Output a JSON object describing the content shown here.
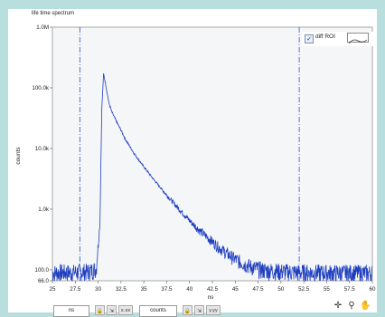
{
  "chart_data": {
    "type": "line",
    "title": "life time spectrum",
    "xlabel": "ns",
    "ylabel": "counts",
    "xlim": [
      25,
      60
    ],
    "ylim": [
      66,
      1000000
    ],
    "yscale": "log",
    "x_ticks": [
      "25",
      "27.5",
      "30",
      "32.5",
      "35",
      "37.5",
      "40",
      "42.5",
      "45",
      "47.5",
      "50",
      "52.5",
      "55",
      "57.5",
      "60"
    ],
    "y_ticks": [
      "1.0M",
      "100.0k",
      "10.0k",
      "1.0k",
      "100.0",
      "66.0"
    ],
    "grid": true,
    "series": [
      {
        "name": "diff ROI",
        "color": "#1f3fbf",
        "x": [
          25,
          26,
          27,
          28,
          29,
          29.8,
          30.2,
          30.4,
          30.6,
          30.8,
          31.0,
          31.2,
          31.5,
          32,
          32.5,
          33,
          34,
          35,
          36,
          37,
          38,
          39,
          40,
          41,
          42,
          43,
          44,
          45,
          46,
          47,
          48,
          50,
          52,
          55,
          57.5,
          60
        ],
        "y": [
          90,
          92,
          91,
          93,
          95,
          105,
          600,
          45000,
          170000,
          120000,
          80000,
          55000,
          40000,
          28000,
          20000,
          14000,
          8000,
          5000,
          3200,
          2100,
          1400,
          950,
          650,
          460,
          340,
          250,
          190,
          150,
          125,
          110,
          100,
          95,
          92,
          90,
          90,
          89
        ]
      }
    ],
    "roi_markers": [
      28,
      52
    ]
  },
  "legend": {
    "label": "diff ROI",
    "checked": "✓"
  },
  "controls": {
    "x_unit": "ns",
    "y_unit": "counts",
    "x_lock": "🔒",
    "x_autoscale": "⇲",
    "x_format": "x.xx",
    "y_lock": "🔒",
    "y_autoscale": "⇲",
    "y_format": "y.yy",
    "cursor_tool": "✛",
    "zoom_tool": "⚲",
    "pan_tool": "✋"
  }
}
